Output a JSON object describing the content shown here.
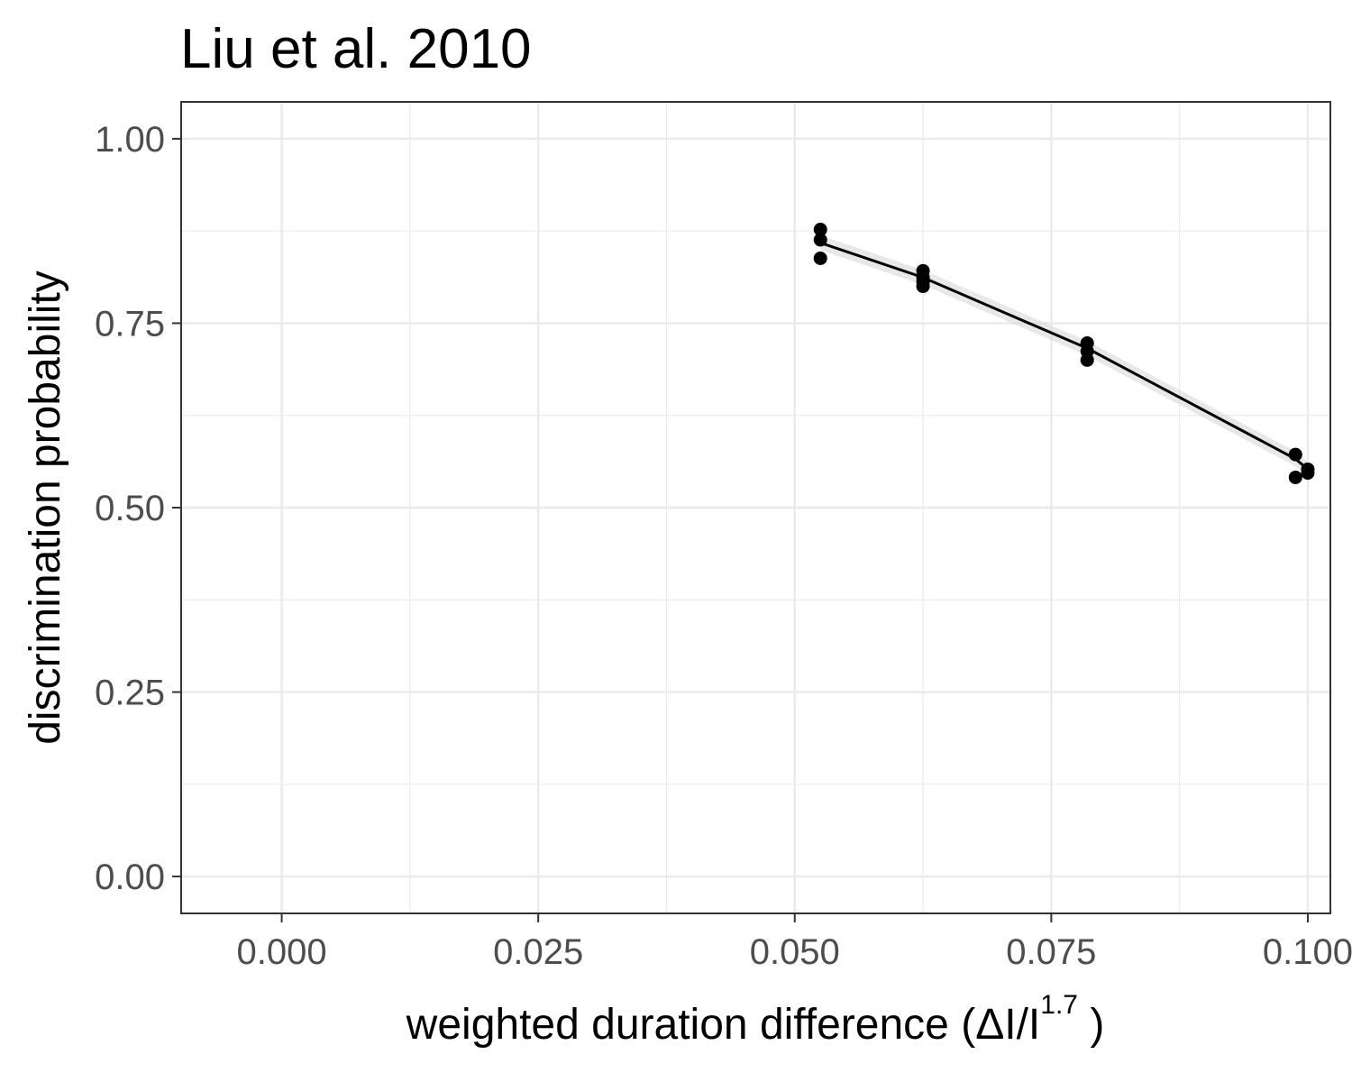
{
  "chart_data": {
    "type": "scatter",
    "title": "Liu et al. 2010",
    "xlabel": {
      "main": "weighted  duration  difference (ΔI/I",
      "sup": "1.7",
      "close": " )"
    },
    "ylabel": "discrimination probability",
    "xlim": [
      -0.0098,
      0.1022
    ],
    "ylim": [
      -0.05,
      1.05
    ],
    "x_ticks": [
      0.0,
      0.025,
      0.05,
      0.075,
      0.1
    ],
    "x_tick_labels": [
      "0.000",
      "0.025",
      "0.050",
      "0.075",
      "0.100"
    ],
    "x_minor": [
      0.0125,
      0.0375,
      0.0625,
      0.0875
    ],
    "y_ticks": [
      0.0,
      0.25,
      0.5,
      0.75,
      1.0
    ],
    "y_tick_labels": [
      "0.00",
      "0.25",
      "0.50",
      "0.75",
      "1.00"
    ],
    "y_minor": [
      0.125,
      0.375,
      0.625,
      0.875
    ],
    "grid": true,
    "colors": {
      "points": "#000000",
      "line": "#000000",
      "ribbon": "#d9d9d9",
      "grid": "#ebebeb",
      "border": "#333333"
    },
    "points": [
      {
        "x": 0.0525,
        "y": 0.877
      },
      {
        "x": 0.0525,
        "y": 0.863
      },
      {
        "x": 0.0525,
        "y": 0.838
      },
      {
        "x": 0.0625,
        "y": 0.821
      },
      {
        "x": 0.0625,
        "y": 0.812
      },
      {
        "x": 0.0625,
        "y": 0.806
      },
      {
        "x": 0.0625,
        "y": 0.8
      },
      {
        "x": 0.0785,
        "y": 0.723
      },
      {
        "x": 0.0785,
        "y": 0.712
      },
      {
        "x": 0.0785,
        "y": 0.7
      },
      {
        "x": 0.0988,
        "y": 0.572
      },
      {
        "x": 0.0988,
        "y": 0.541
      },
      {
        "x": 0.1,
        "y": 0.552
      },
      {
        "x": 0.1,
        "y": 0.547
      }
    ],
    "fit_line": [
      {
        "x": 0.0525,
        "y": 0.859
      },
      {
        "x": 0.0625,
        "y": 0.812
      },
      {
        "x": 0.0785,
        "y": 0.716
      },
      {
        "x": 0.0988,
        "y": 0.566
      },
      {
        "x": 0.1,
        "y": 0.552
      }
    ],
    "fit_band": 0.01
  }
}
